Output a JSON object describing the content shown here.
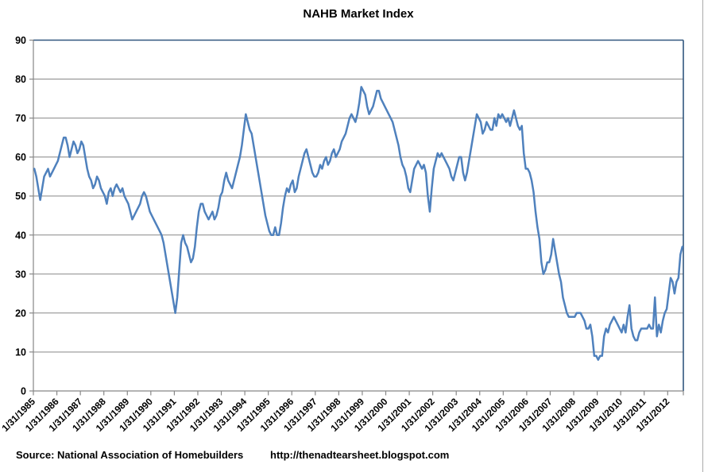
{
  "title": "NAHB Market Index",
  "footer": {
    "source": "Source:  National Association of Homebuilders",
    "url": "http://thenadtearsheet.blogspot.com"
  },
  "colors": {
    "series": "#4F81BD",
    "gridline": "#878787",
    "axis": "#878787",
    "plot_border": "#31577F",
    "text": "#000000",
    "chart_border": "#ABABAB"
  },
  "chart_data": {
    "type": "line",
    "title": "NAHB Market Index",
    "frequency": "monthly",
    "x_start": "1/31/1985",
    "x_end": "8/31/2012",
    "grid": true,
    "legend": false,
    "ylim": [
      0,
      90
    ],
    "y_ticks": [
      0,
      10,
      20,
      30,
      40,
      50,
      60,
      70,
      80,
      90
    ],
    "x_tick_labels": [
      "1/31/1985",
      "1/31/1986",
      "1/31/1987",
      "1/31/1988",
      "1/31/1989",
      "1/31/1990",
      "1/31/1991",
      "1/31/1992",
      "1/31/1993",
      "1/31/1994",
      "1/31/1995",
      "1/31/1996",
      "1/31/1997",
      "1/31/1998",
      "1/31/1999",
      "1/31/2000",
      "1/31/2001",
      "1/31/2002",
      "1/31/2003",
      "1/31/2004",
      "1/31/2005",
      "1/31/2006",
      "1/31/2007",
      "1/31/2008",
      "1/31/2009",
      "1/31/2010",
      "1/31/2011",
      "1/31/2012"
    ],
    "series": [
      {
        "name": "NAHB Market Index",
        "values": [
          57,
          55,
          52,
          49,
          52,
          55,
          56,
          57,
          55,
          56,
          57,
          58,
          59,
          61,
          63,
          65,
          65,
          63,
          60,
          62,
          64,
          63,
          61,
          62,
          64,
          63,
          60,
          57,
          55,
          54,
          52,
          53,
          55,
          54,
          52,
          51,
          50,
          48,
          51,
          52,
          50,
          52,
          53,
          52,
          51,
          52,
          50,
          49,
          48,
          46,
          44,
          45,
          46,
          47,
          48,
          50,
          51,
          50,
          48,
          46,
          45,
          44,
          43,
          42,
          41,
          40,
          38,
          35,
          32,
          29,
          26,
          23,
          20,
          24,
          31,
          38,
          40,
          38,
          37,
          35,
          33,
          34,
          37,
          42,
          46,
          48,
          48,
          46,
          45,
          44,
          45,
          46,
          44,
          45,
          47,
          50,
          51,
          54,
          56,
          54,
          53,
          52,
          54,
          56,
          58,
          60,
          63,
          67,
          71,
          69,
          67,
          66,
          63,
          60,
          57,
          54,
          51,
          48,
          45,
          43,
          41,
          40,
          40,
          42,
          40,
          40,
          43,
          47,
          50,
          52,
          51,
          53,
          54,
          51,
          52,
          55,
          57,
          59,
          61,
          62,
          60,
          58,
          56,
          55,
          55,
          56,
          58,
          57,
          59,
          60,
          58,
          59,
          61,
          62,
          60,
          61,
          62,
          64,
          65,
          66,
          68,
          70,
          71,
          70,
          69,
          71,
          74,
          78,
          77,
          76,
          73,
          71,
          72,
          73,
          75,
          77,
          77,
          75,
          74,
          73,
          72,
          71,
          70,
          69,
          67,
          65,
          63,
          60,
          58,
          57,
          55,
          52,
          51,
          54,
          57,
          58,
          59,
          58,
          57,
          58,
          56,
          50,
          46,
          52,
          57,
          59,
          61,
          60,
          61,
          60,
          59,
          58,
          57,
          55,
          54,
          56,
          58,
          60,
          60,
          56,
          54,
          56,
          59,
          62,
          65,
          68,
          71,
          70,
          69,
          66,
          67,
          69,
          68,
          67,
          67,
          70,
          68,
          71,
          70,
          71,
          70,
          69,
          70,
          68,
          70,
          72,
          70,
          68,
          67,
          68,
          61,
          57,
          57,
          56,
          54,
          51,
          46,
          42,
          39,
          33,
          30,
          31,
          33,
          33,
          35,
          39,
          36,
          33,
          30,
          28,
          24,
          22,
          20,
          19,
          19,
          19,
          19,
          20,
          20,
          20,
          19,
          18,
          16,
          16,
          17,
          14,
          9,
          9,
          8,
          9,
          9,
          14,
          16,
          15,
          17,
          18,
          19,
          18,
          17,
          16,
          15,
          17,
          15,
          19,
          22,
          16,
          14,
          13,
          13,
          15,
          16,
          16,
          16,
          16,
          17,
          16,
          16,
          24,
          14,
          17,
          15,
          18,
          20,
          21,
          25,
          29,
          28,
          25,
          28,
          29,
          35,
          37
        ]
      }
    ]
  }
}
